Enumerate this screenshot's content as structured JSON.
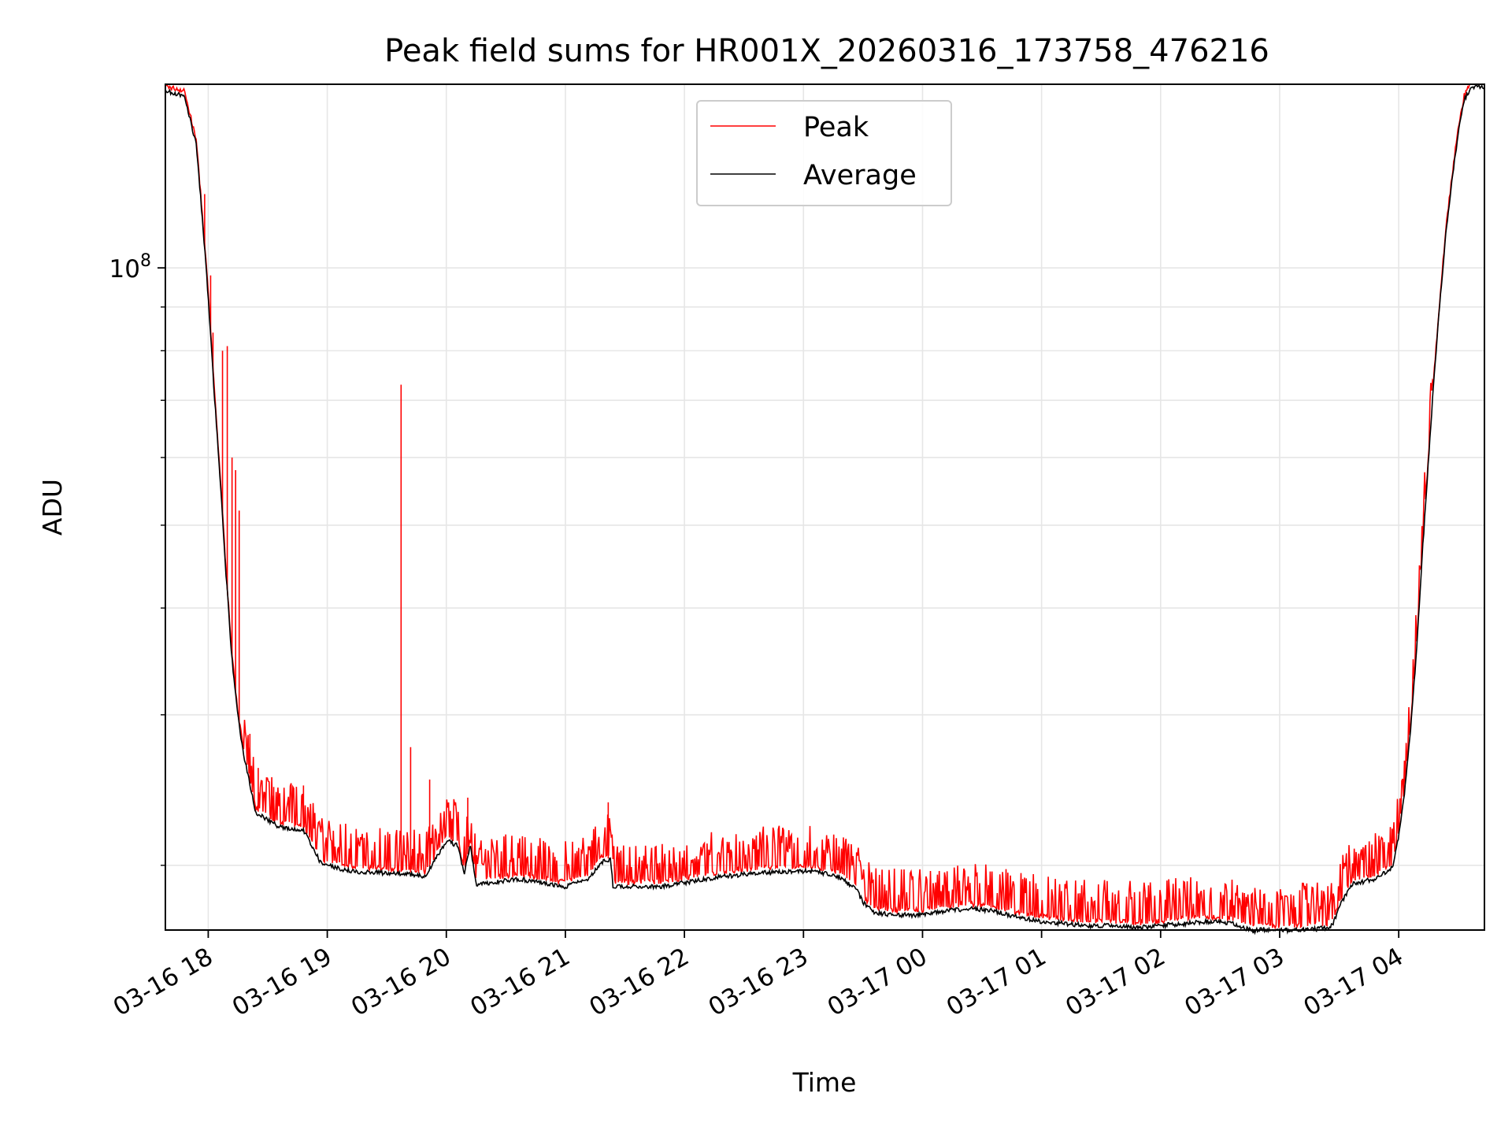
{
  "chart_data": {
    "type": "line",
    "title": "Peak field sums for HR001X_20260316_173758_476216",
    "xlabel": "Time",
    "ylabel": "ADU",
    "y_scale": "log",
    "ylim": [
      16800000,
      164000000
    ],
    "x_range_hours": [
      17.64,
      28.72
    ],
    "x_ticks": [
      {
        "label": "03-16 18",
        "hours": 18
      },
      {
        "label": "03-16 19",
        "hours": 19
      },
      {
        "label": "03-16 20",
        "hours": 20
      },
      {
        "label": "03-16 21",
        "hours": 21
      },
      {
        "label": "03-16 22",
        "hours": 22
      },
      {
        "label": "03-16 23",
        "hours": 23
      },
      {
        "label": "03-17 00",
        "hours": 24
      },
      {
        "label": "03-17 01",
        "hours": 25
      },
      {
        "label": "03-17 02",
        "hours": 26
      },
      {
        "label": "03-17 03",
        "hours": 27
      },
      {
        "label": "03-17 04",
        "hours": 28
      }
    ],
    "y_major_tick": {
      "label_base": "10",
      "label_exp": "8",
      "value": 100000000
    },
    "grid": true,
    "legend": {
      "position": "upper-center"
    },
    "series": [
      {
        "name": "Average",
        "color": "#000000",
        "x": [
          17.64,
          17.8,
          17.9,
          17.95,
          18.0,
          18.05,
          18.1,
          18.15,
          18.2,
          18.25,
          18.3,
          18.4,
          18.6,
          18.8,
          18.95,
          19.2,
          19.5,
          19.75,
          19.82,
          20.0,
          20.1,
          20.15,
          20.2,
          20.25,
          20.6,
          20.9,
          21.0,
          21.1,
          21.2,
          21.3,
          21.38,
          21.4,
          21.6,
          21.8,
          22.0,
          22.3,
          22.6,
          22.9,
          23.1,
          23.3,
          23.45,
          23.5,
          23.6,
          23.8,
          24.0,
          24.2,
          24.4,
          24.6,
          24.8,
          25.0,
          25.2,
          25.4,
          25.6,
          25.8,
          26.0,
          26.2,
          26.4,
          26.6,
          26.7,
          26.78,
          26.85,
          26.9,
          27.0,
          27.1,
          27.2,
          27.3,
          27.4,
          27.45,
          27.5,
          27.6,
          27.8,
          27.95,
          28.0,
          28.05,
          28.1,
          28.15,
          28.2,
          28.25,
          28.3,
          28.35,
          28.4,
          28.45,
          28.5,
          28.55,
          28.6,
          28.65,
          28.72
        ],
        "values": [
          162000000,
          160000000,
          140000000,
          115000000,
          93000000,
          72000000,
          57000000,
          44000000,
          35000000,
          30000000,
          27000000,
          23200000,
          22300000,
          22100000,
          20200000,
          19800000,
          19700000,
          19600000,
          19500000,
          21500000,
          21200000,
          19600000,
          21300000,
          19100000,
          19400000,
          19100000,
          19000000,
          19300000,
          19400000,
          20300000,
          20400000,
          19000000,
          19000000,
          19000000,
          19200000,
          19500000,
          19700000,
          19800000,
          19800000,
          19500000,
          18800000,
          18200000,
          17700000,
          17600000,
          17600000,
          17800000,
          17900000,
          17800000,
          17500000,
          17300000,
          17200000,
          17100000,
          17100000,
          17000000,
          17100000,
          17200000,
          17300000,
          17200000,
          17000000,
          16850000,
          16950000,
          16900000,
          16880000,
          16900000,
          16930000,
          16950000,
          17000000,
          17200000,
          18000000,
          19100000,
          19400000,
          20000000,
          21800000,
          24500000,
          29000000,
          36000000,
          47000000,
          60000000,
          76000000,
          93000000,
          112000000,
          128000000,
          145000000,
          158000000,
          163000000,
          164000000,
          164000000
        ]
      },
      {
        "name": "Peak",
        "color": "#ff0000",
        "spikes": [
          {
            "x": 17.97,
            "value": 122000000
          },
          {
            "x": 18.02,
            "value": 98000000
          },
          {
            "x": 18.04,
            "value": 84000000
          },
          {
            "x": 18.12,
            "value": 80000000
          },
          {
            "x": 18.16,
            "value": 81000000
          },
          {
            "x": 18.2,
            "value": 60000000
          },
          {
            "x": 18.23,
            "value": 58000000
          },
          {
            "x": 18.26,
            "value": 52000000
          },
          {
            "x": 18.35,
            "value": 28500000
          },
          {
            "x": 18.42,
            "value": 26000000
          },
          {
            "x": 18.55,
            "value": 24700000
          },
          {
            "x": 18.8,
            "value": 24800000
          },
          {
            "x": 19.62,
            "value": 73000000
          },
          {
            "x": 19.7,
            "value": 27500000
          },
          {
            "x": 19.86,
            "value": 25200000
          },
          {
            "x": 20.18,
            "value": 24000000
          },
          {
            "x": 21.36,
            "value": 23700000
          }
        ],
        "noise_band_fraction": 0.09
      }
    ]
  }
}
